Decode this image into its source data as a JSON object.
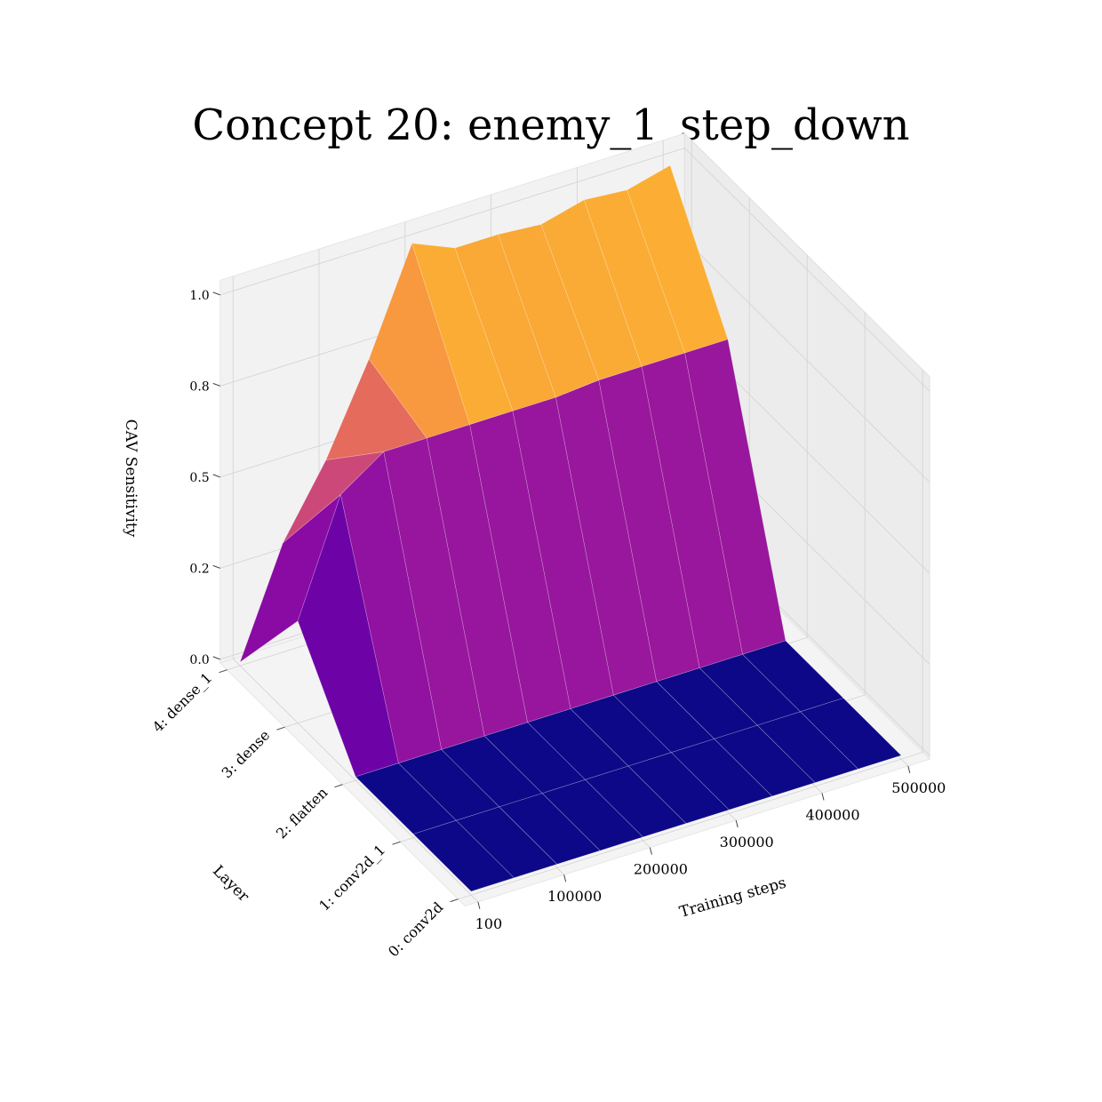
{
  "chart_data": {
    "type": "surface3d",
    "title": "Concept 20: enemy_1_step_down",
    "xlabel": "Training steps",
    "ylabel": "Layer",
    "zlabel": "CAV Sensitivity",
    "x_ticks": [
      "100",
      "100000",
      "200000",
      "300000",
      "400000",
      "500000"
    ],
    "y_ticks": [
      "0: conv2d",
      "1: conv2d_1",
      "2: flatten",
      "3: dense",
      "4: dense_1"
    ],
    "z_ticks": [
      "0.0",
      "0.2",
      "0.5",
      "0.8",
      "1.0"
    ],
    "colormap": "plasma",
    "x": [
      100,
      50000,
      100000,
      150000,
      200000,
      250000,
      300000,
      350000,
      400000,
      450000,
      500000
    ],
    "layers": [
      "0: conv2d",
      "1: conv2d_1",
      "2: flatten",
      "3: dense",
      "4: dense_1"
    ],
    "z": [
      [
        0.0,
        0.0,
        0.0,
        0.0,
        0.0,
        0.0,
        0.0,
        0.0,
        0.0,
        0.0,
        0.0
      ],
      [
        0.0,
        0.0,
        0.0,
        0.0,
        0.0,
        0.0,
        0.0,
        0.0,
        0.0,
        0.0,
        0.0
      ],
      [
        0.0,
        0.0,
        0.0,
        0.0,
        0.0,
        0.0,
        0.0,
        0.0,
        0.0,
        0.0,
        0.0
      ],
      [
        0.27,
        0.58,
        0.66,
        0.66,
        0.66,
        0.66,
        0.66,
        0.67,
        0.67,
        0.67,
        0.67
      ],
      [
        0.0,
        0.29,
        0.48,
        0.72,
        1.0,
        0.95,
        0.95,
        0.94,
        0.97,
        0.96,
        0.99
      ]
    ]
  }
}
